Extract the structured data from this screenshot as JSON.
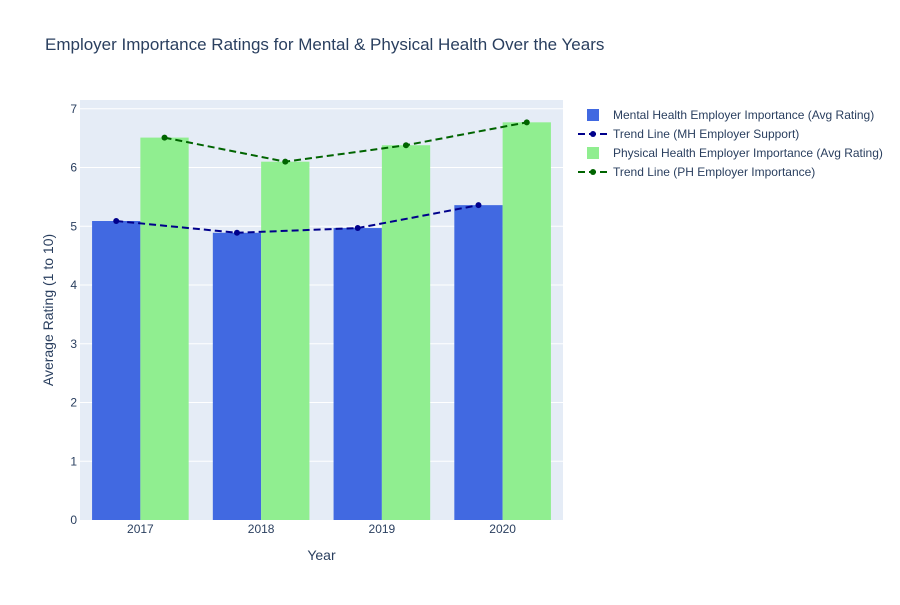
{
  "chart_data": {
    "type": "bar",
    "title": "Employer Importance Ratings for Mental & Physical Health Over the Years",
    "xlabel": "Year",
    "ylabel": "Average Rating (1 to 10)",
    "categories": [
      "2017",
      "2018",
      "2019",
      "2020"
    ],
    "ylim": [
      0,
      7.15
    ],
    "yticks": [
      "0",
      "1",
      "2",
      "3",
      "4",
      "5",
      "6",
      "7"
    ],
    "grid": true,
    "legend_position": "right",
    "series": [
      {
        "name": "Mental Health Employer Importance (Avg Rating)",
        "type": "bar",
        "color": "#4169e1",
        "values": [
          5.09,
          4.89,
          4.97,
          5.36
        ]
      },
      {
        "name": "Trend Line (MH Employer Support)",
        "type": "line",
        "dash": true,
        "color": "#00008b",
        "values": [
          5.09,
          4.89,
          4.97,
          5.36
        ]
      },
      {
        "name": "Physical Health Employer Importance (Avg Rating)",
        "type": "bar",
        "color": "#90ee90",
        "values": [
          6.51,
          6.1,
          6.38,
          6.77
        ]
      },
      {
        "name": "Trend Line (PH Employer Importance)",
        "type": "line",
        "dash": true,
        "color": "#006400",
        "values": [
          6.51,
          6.1,
          6.38,
          6.77
        ]
      }
    ]
  }
}
